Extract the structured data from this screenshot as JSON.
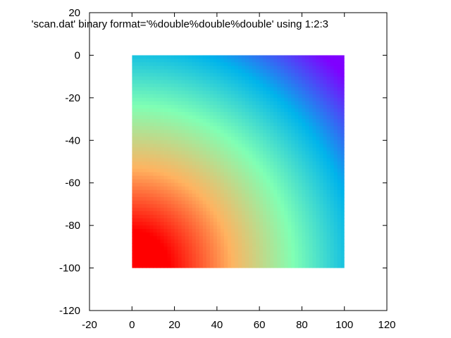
{
  "chart_data": {
    "type": "heatmap",
    "title": "",
    "xlabel": "",
    "ylabel": "",
    "xlim": [
      -20,
      120
    ],
    "ylim": [
      -120,
      20
    ],
    "x_ticks": [
      -20,
      0,
      20,
      40,
      60,
      80,
      100,
      120
    ],
    "y_ticks": [
      -120,
      -100,
      -80,
      -60,
      -40,
      -20,
      0,
      20
    ],
    "x_tick_labels": [
      "-20",
      "0",
      "20",
      "40",
      "60",
      "80",
      "100",
      "120"
    ],
    "y_tick_labels": [
      "-120",
      "-100",
      "-80",
      "-60",
      "-40",
      "-20",
      "0",
      "20"
    ],
    "grid": false,
    "legend_placement": "top-right",
    "series": [
      {
        "name": "'scan.dat' binary format='%double%double%double' using 1:2:3",
        "x_range": [
          0,
          100
        ],
        "y_range": [
          -100,
          0
        ],
        "palette": "rainbow",
        "palette_colors": [
          "#7f00ff",
          "#00b4eb",
          "#80ffb4",
          "#ffb360",
          "#ff0000"
        ]
      }
    ]
  }
}
